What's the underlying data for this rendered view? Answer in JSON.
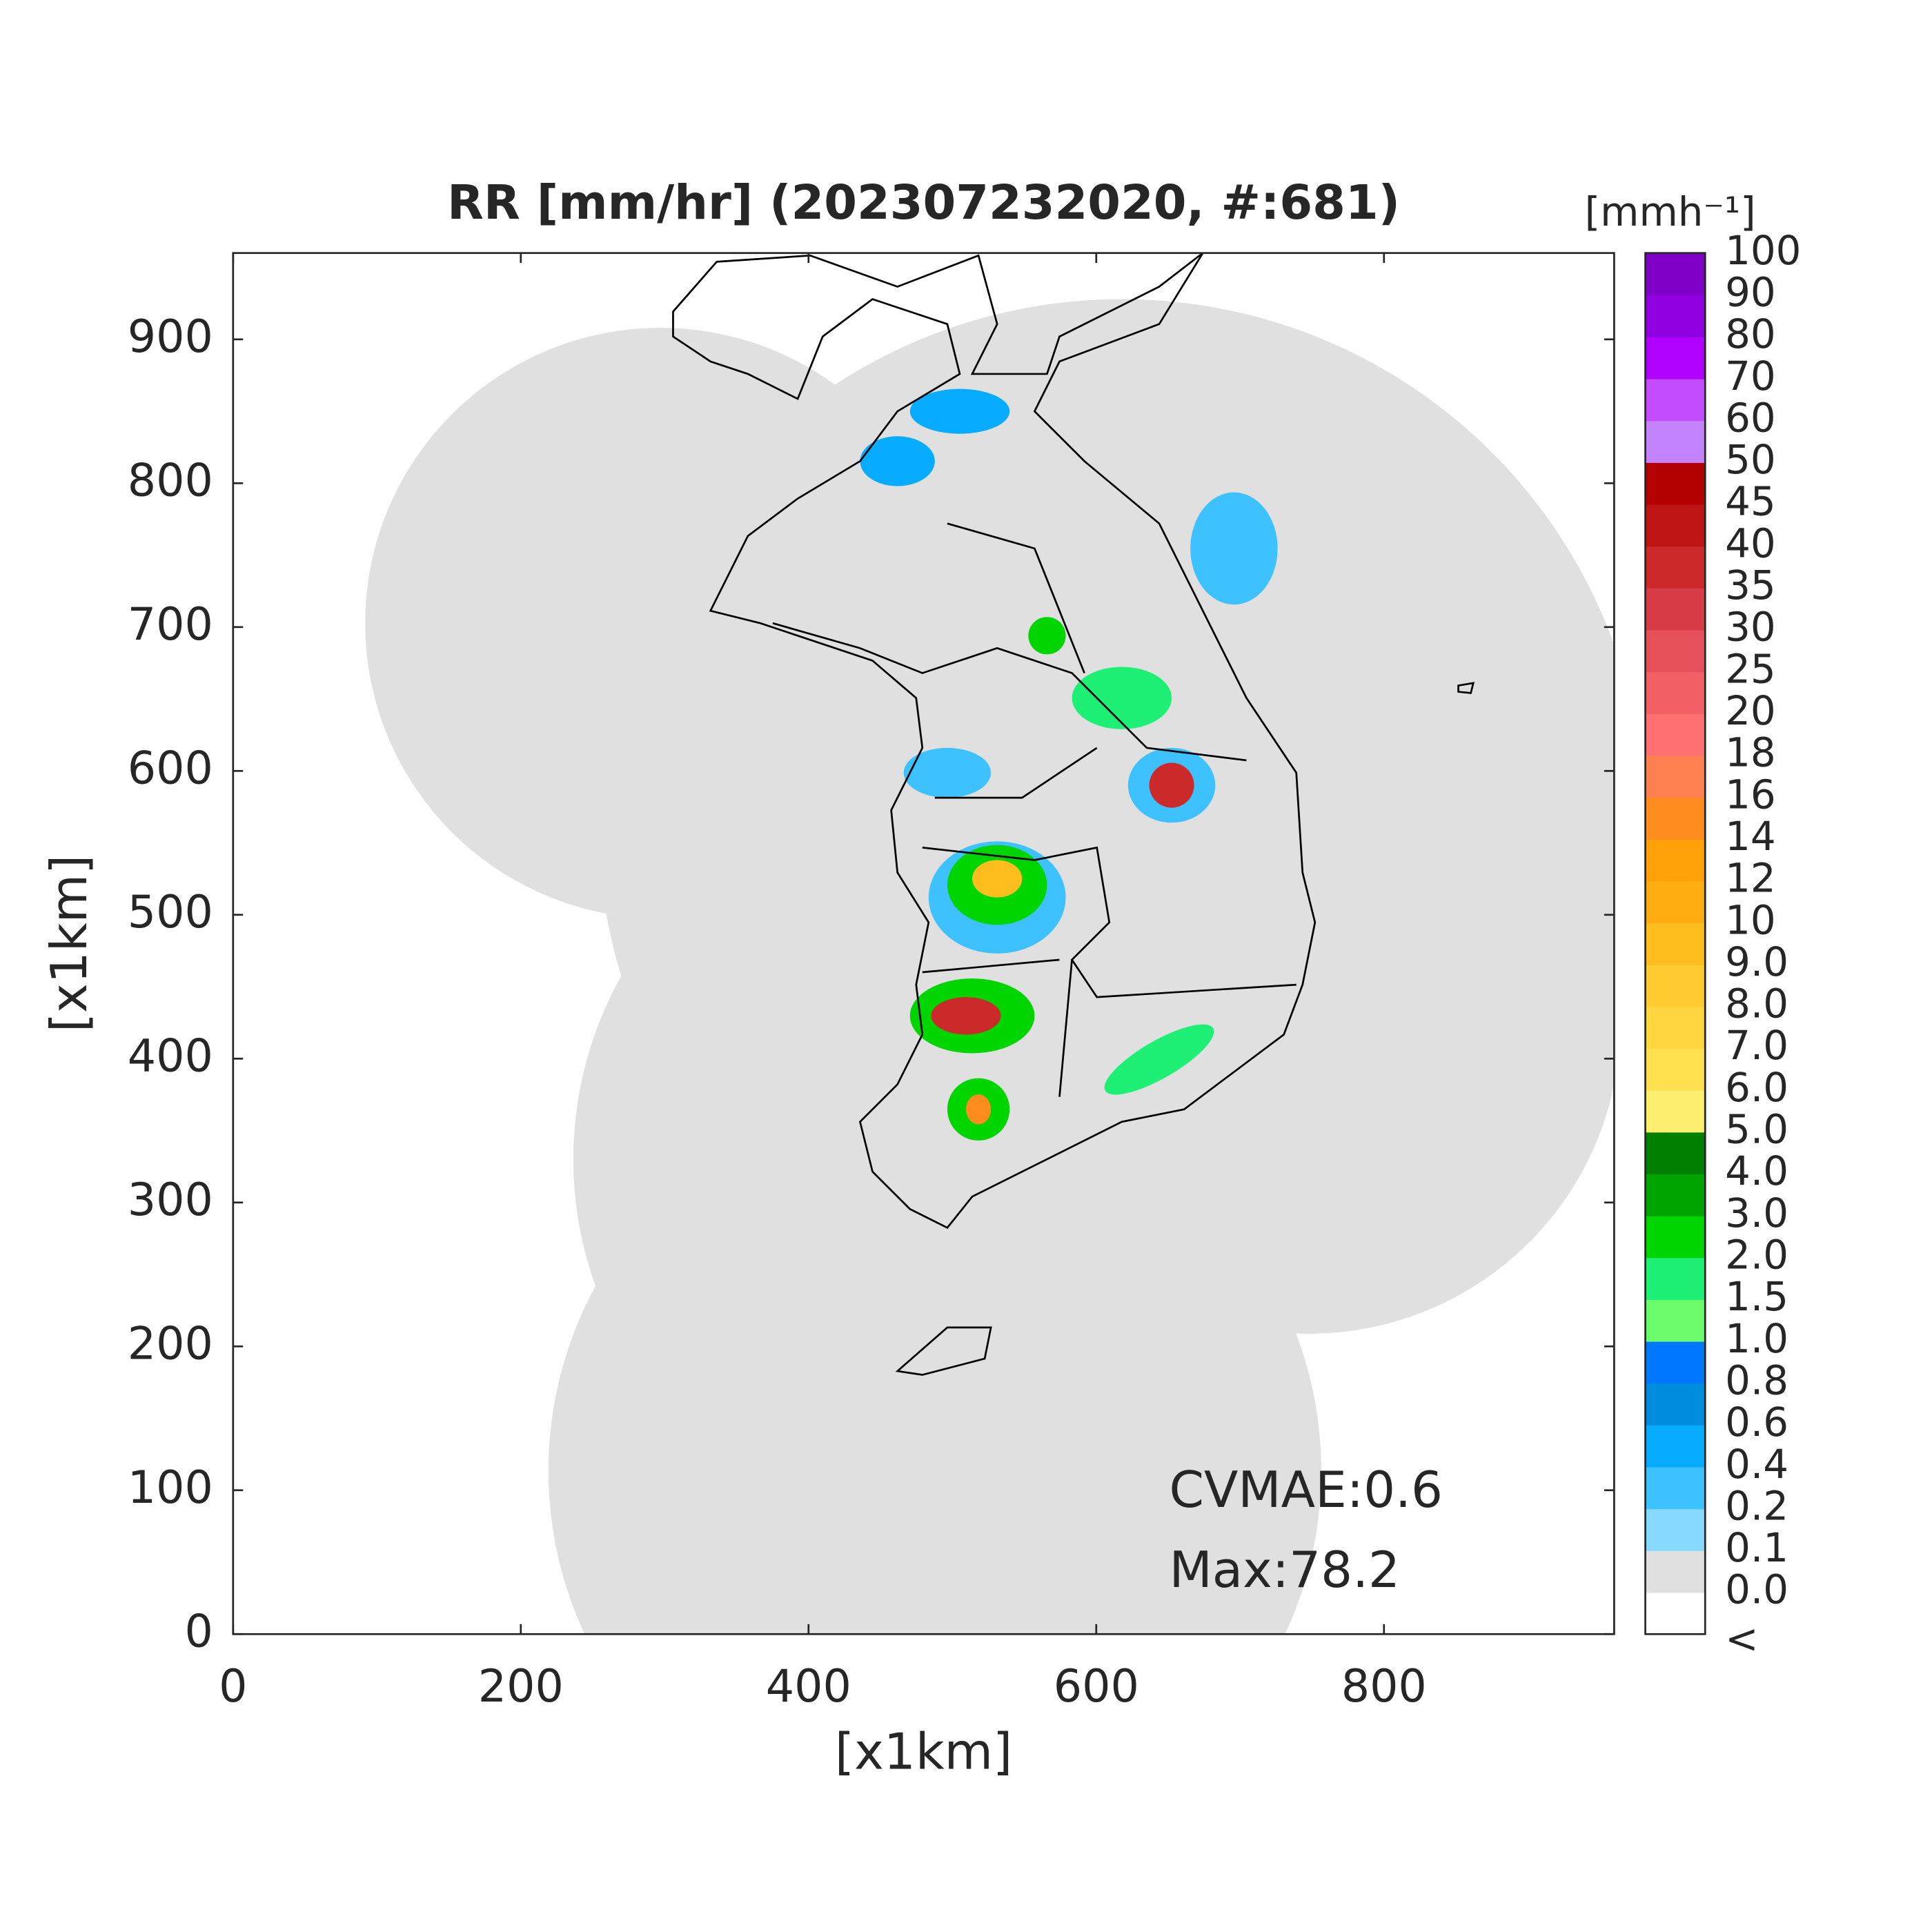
{
  "chart_data": {
    "type": "map",
    "title": "RR [mm/hr] (202307232020, #:681)",
    "x_label": "[x1km]",
    "y_label": "[x1km]",
    "xlim": [
      0,
      960
    ],
    "ylim": [
      0,
      960
    ],
    "xticks": [
      0,
      200,
      400,
      600,
      800
    ],
    "yticks": [
      0,
      100,
      200,
      300,
      400,
      500,
      600,
      700,
      800,
      900
    ],
    "annotations": [
      "CVMAE:0.6",
      "Max:78.2"
    ],
    "colorbar": {
      "title": "[mmh⁻¹]",
      "labels": [
        "<",
        "0.0",
        "0.1",
        "0.2",
        "0.4",
        "0.6",
        "0.8",
        "1.0",
        "1.5",
        "2.0",
        "3.0",
        "4.0",
        "5.0",
        "6.0",
        "7.0",
        "8.0",
        "9.0",
        "10",
        "12",
        "14",
        "16",
        "18",
        "20",
        "25",
        "30",
        "35",
        "40",
        "45",
        "50",
        "60",
        "70",
        "80",
        "90",
        "100"
      ],
      "colors": [
        "#ffffff",
        "#e0e0e0",
        "#87d9ff",
        "#3ec1ff",
        "#07abff",
        "#008dde",
        "#0077ff",
        "#6afc6a",
        "#1ef076",
        "#00d500",
        "#00a400",
        "#008000",
        "#ffef70",
        "#ffe150",
        "#ffd540",
        "#ffcb30",
        "#ffbd1e",
        "#ffad10",
        "#ffa108",
        "#ff8c1e",
        "#ff8050",
        "#ff7070",
        "#f26066",
        "#e6505a",
        "#d83c46",
        "#cc2a2a",
        "#bf1414",
        "#b30000",
        "#c383ff",
        "#c44cff",
        "#b000ff",
        "#9000e0",
        "#8000c8",
        "#333333"
      ]
    }
  }
}
